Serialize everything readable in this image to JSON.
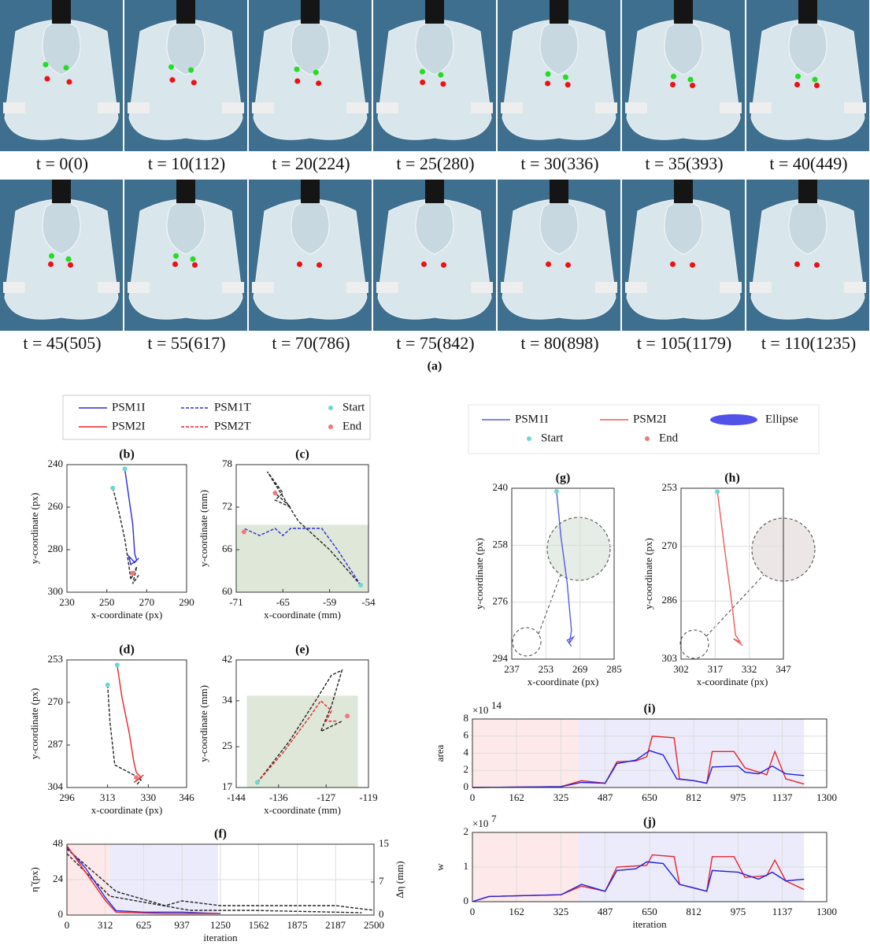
{
  "figure_a": {
    "labels": [
      "t = 0(0)",
      "t = 10(112)",
      "t = 20(224)",
      "t = 25(280)",
      "t = 30(336)",
      "t = 35(393)",
      "t = 40(449)",
      "t = 45(505)",
      "t = 55(617)",
      "t = 70(786)",
      "t = 75(842)",
      "t = 80(898)",
      "t = 105(1179)",
      "t = 110(1235)"
    ],
    "caption": "(a)"
  },
  "legends": [
    {
      "entries": [
        {
          "name": "PSM1I",
          "color": "#2b2bdc",
          "style": "solid"
        },
        {
          "name": "PSM1T",
          "color": "#2b2bdc",
          "style": "dashed"
        },
        {
          "name": "Start",
          "color": "#6fd6d6",
          "style": "point"
        },
        {
          "name": "PSM2I",
          "color": "#e8242a",
          "style": "solid"
        },
        {
          "name": "PSM2T",
          "color": "#e8242a",
          "style": "dashed"
        },
        {
          "name": "End",
          "color": "#f07a7a",
          "style": "point"
        }
      ]
    },
    {
      "entries": [
        {
          "name": "PSM1I",
          "color": "#5a5ae6",
          "style": "solid"
        },
        {
          "name": "PSM2I",
          "color": "#ee5a5a",
          "style": "solid"
        },
        {
          "name": "Ellipse",
          "color": "#5252e8",
          "style": "ellipse"
        },
        {
          "name": "Start",
          "color": "#6fd6d6",
          "style": "point"
        },
        {
          "name": "End",
          "color": "#f07a7a",
          "style": "point"
        }
      ]
    }
  ],
  "chart_data": [
    {
      "type": "line",
      "title": "(b)",
      "xlabel": "x-coordinate (px)",
      "ylabel": "y-coordinate (px)",
      "xlim": [
        230,
        290
      ],
      "xticks": [
        230,
        250,
        270,
        290
      ],
      "ylim": [
        300,
        240
      ],
      "yticks": [
        240,
        260,
        280,
        300
      ],
      "grid": false,
      "series": [
        {
          "color": "#222",
          "style": "dashed",
          "x": [
            253,
            256,
            259,
            261,
            262,
            264,
            265,
            263,
            266
          ],
          "y": [
            251,
            262,
            275,
            287,
            294,
            290,
            288,
            296,
            292
          ]
        },
        {
          "color": "#2b2bdc",
          "style": "solid",
          "x": [
            259,
            261,
            263,
            264,
            265,
            262,
            261,
            264,
            266
          ],
          "y": [
            242,
            255,
            268,
            282,
            285,
            287,
            283,
            286,
            284
          ]
        },
        {
          "color": "#6fd6d6",
          "style": "point",
          "x": [
            259,
            253
          ],
          "y": [
            242,
            251
          ]
        },
        {
          "color": "#f07a7a",
          "style": "point",
          "x": [
            263
          ],
          "y": [
            291
          ]
        }
      ]
    },
    {
      "type": "line",
      "title": "(c)",
      "xlabel": "x-coordinate (mm)",
      "ylabel": "y-coordinate (mm)",
      "xlim": [
        -71,
        -54
      ],
      "xticks": [
        -71,
        -65,
        -59,
        -54
      ],
      "ylim": [
        60,
        78
      ],
      "yticks": [
        60,
        66,
        72,
        78
      ],
      "grid": false,
      "regions": [
        {
          "x": [
            -71,
            -54
          ],
          "y": [
            60,
            69.5
          ],
          "color": "#dfe8d8"
        }
      ],
      "series": [
        {
          "color": "#222",
          "style": "dashed",
          "x": [
            -55,
            -59,
            -63,
            -67,
            -65,
            -66,
            -64,
            -66
          ],
          "y": [
            61,
            66,
            70,
            77,
            74,
            73,
            72,
            74
          ]
        },
        {
          "color": "#2b2bdc",
          "style": "dashed",
          "x": [
            -55,
            -58,
            -60,
            -62,
            -64,
            -65,
            -66,
            -68,
            -70
          ],
          "y": [
            61,
            66,
            69,
            69,
            69,
            68,
            69,
            68,
            69
          ]
        },
        {
          "color": "#6fd6d6",
          "style": "point",
          "x": [
            -55
          ],
          "y": [
            61
          ]
        },
        {
          "color": "#f07a7a",
          "style": "point",
          "x": [
            -66,
            -70
          ],
          "y": [
            74,
            68.5
          ]
        }
      ]
    },
    {
      "type": "line",
      "title": "(d)",
      "xlabel": "x-coordinate (px)",
      "ylabel": "y-coordinate (px)",
      "xlim": [
        296,
        346
      ],
      "xticks": [
        296,
        313,
        330,
        346
      ],
      "ylim": [
        304,
        253
      ],
      "yticks": [
        253,
        270,
        287,
        304
      ],
      "grid": false,
      "series": [
        {
          "color": "#222",
          "style": "dashed",
          "x": [
            313,
            314,
            316,
            320,
            324,
            327,
            325
          ],
          "y": [
            263,
            278,
            295,
            297,
            299,
            301,
            303
          ]
        },
        {
          "color": "#e8242a",
          "style": "solid",
          "x": [
            317,
            319,
            322,
            324,
            325,
            327,
            324,
            328
          ],
          "y": [
            255,
            268,
            282,
            294,
            298,
            300,
            302,
            299
          ]
        },
        {
          "color": "#6fd6d6",
          "style": "point",
          "x": [
            317,
            313
          ],
          "y": [
            255,
            263
          ]
        },
        {
          "color": "#f07a7a",
          "style": "point",
          "x": [
            325
          ],
          "y": [
            300
          ]
        }
      ]
    },
    {
      "type": "line",
      "title": "(e)",
      "xlabel": "x-coordinate (mm)",
      "ylabel": "y-coordinate (mm)",
      "xlim": [
        -144,
        -119
      ],
      "xticks": [
        -144,
        -136,
        -127,
        -119
      ],
      "ylim": [
        17,
        42
      ],
      "yticks": [
        17,
        25,
        34,
        42
      ],
      "grid": false,
      "regions": [
        {
          "x": [
            -142,
            -121
          ],
          "y": [
            17,
            35
          ],
          "color": "#dfe8d8"
        }
      ],
      "series": [
        {
          "color": "#222",
          "style": "dashed",
          "x": [
            -140,
            -134,
            -129,
            -126,
            -124,
            -126,
            -128,
            -124
          ],
          "y": [
            18,
            26,
            34,
            39,
            40,
            33,
            28,
            30
          ]
        },
        {
          "color": "#e8242a",
          "style": "dashed",
          "x": [
            -140,
            -135,
            -130,
            -128,
            -126,
            -127,
            -125
          ],
          "y": [
            18,
            24,
            31,
            34,
            32,
            30,
            30
          ]
        },
        {
          "color": "#6fd6d6",
          "style": "point",
          "x": [
            -140
          ],
          "y": [
            18
          ]
        },
        {
          "color": "#f07a7a",
          "style": "point",
          "x": [
            -123
          ],
          "y": [
            31
          ]
        }
      ]
    },
    {
      "type": "line",
      "title": "(f)",
      "xlabel": "iteration",
      "ylabel": "η̃ (px)",
      "y2label": "Δη (mm)",
      "xlim": [
        0,
        2500
      ],
      "xticks": [
        0,
        312,
        625,
        937,
        1250,
        1562,
        1875,
        2187,
        2500
      ],
      "ylim": [
        0,
        48
      ],
      "yticks": [
        0,
        24,
        48
      ],
      "y2lim": [
        0,
        15
      ],
      "y2ticks": [
        0,
        7,
        15
      ],
      "grid": true,
      "regions": [
        {
          "x": [
            0,
            350
          ],
          "y": [
            0,
            48
          ],
          "color": "#fde9e9"
        },
        {
          "x": [
            350,
            1230
          ],
          "y": [
            0,
            48
          ],
          "color": "#ebebfb"
        }
      ],
      "series": [
        {
          "color": "#222",
          "style": "dashed",
          "axis": "y2",
          "x": [
            0,
            400,
            800,
            937,
            1250,
            1562,
            1875,
            2187,
            2500
          ],
          "y": [
            14,
            5,
            2,
            3,
            2,
            2,
            2,
            2,
            1
          ]
        },
        {
          "color": "#222",
          "style": "dashed",
          "axis": "y2",
          "x": [
            0,
            350,
            1000,
            1500,
            2400
          ],
          "y": [
            13,
            4,
            1,
            1,
            0.5
          ]
        },
        {
          "color": "#2b2bdc",
          "style": "solid",
          "x": [
            0,
            150,
            312,
            400,
            625,
            937,
            1250
          ],
          "y": [
            46,
            32,
            12,
            3,
            2,
            2,
            1
          ]
        },
        {
          "color": "#e8242a",
          "style": "solid",
          "x": [
            0,
            312,
            400,
            800,
            1230
          ],
          "y": [
            47,
            10,
            2,
            1,
            1
          ]
        }
      ]
    },
    {
      "type": "line",
      "title": "(g)",
      "xlabel": "x-coordinate (px)",
      "ylabel": "y-coordinate (px)",
      "xlim": [
        237,
        285
      ],
      "xticks": [
        237,
        253,
        269,
        285
      ],
      "ylim": [
        294,
        240
      ],
      "yticks": [
        240,
        258,
        276,
        294
      ],
      "grid": true,
      "series": [
        {
          "color": "#5a5ae6",
          "style": "solid",
          "x": [
            258,
            260,
            263,
            265,
            264,
            266,
            263,
            265
          ],
          "y": [
            241,
            255,
            270,
            285,
            289,
            287,
            288,
            290
          ]
        },
        {
          "color": "#6fd6d6",
          "style": "point",
          "x": [
            258
          ],
          "y": [
            241
          ]
        }
      ]
    },
    {
      "type": "line",
      "title": "(h)",
      "xlabel": "x-coordinate (px)",
      "ylabel": "y-coordinate (px)",
      "xlim": [
        302,
        347
      ],
      "xticks": [
        302,
        317,
        332,
        347
      ],
      "ylim": [
        303,
        253
      ],
      "yticks": [
        253,
        270,
        286,
        303
      ],
      "grid": true,
      "series": [
        {
          "color": "#ee5a5a",
          "style": "solid",
          "x": [
            318,
            321,
            324,
            326,
            328,
            325,
            329
          ],
          "y": [
            254,
            270,
            285,
            296,
            298,
            297,
            299
          ]
        },
        {
          "color": "#6fd6d6",
          "style": "point",
          "x": [
            318
          ],
          "y": [
            254
          ]
        }
      ]
    },
    {
      "type": "line",
      "title": "(i)",
      "ylabel": "area",
      "multiplier": "×10",
      "multiplier_exponent": "14",
      "xlim": [
        0,
        1300
      ],
      "xticks": [
        0,
        162,
        325,
        487,
        650,
        812,
        975,
        1137,
        1300
      ],
      "ylim": [
        0,
        8
      ],
      "yticks": [
        0,
        2,
        4,
        6,
        8
      ],
      "grid": true,
      "regions": [
        {
          "x": [
            0,
            390
          ],
          "y": [
            0,
            8
          ],
          "color": "#fde9e9"
        },
        {
          "x": [
            390,
            1217
          ],
          "y": [
            0,
            8
          ],
          "color": "#ebebfb"
        }
      ],
      "series": [
        {
          "color": "#e8242a",
          "style": "solid",
          "x": [
            0,
            325,
            400,
            487,
            530,
            600,
            640,
            660,
            740,
            760,
            812,
            860,
            880,
            960,
            1000,
            1080,
            1110,
            1150,
            1217
          ],
          "y": [
            0,
            0.1,
            0.8,
            0.5,
            3,
            3.1,
            3.6,
            6,
            5.8,
            1,
            0.8,
            0.5,
            4.2,
            4.2,
            2.3,
            1.5,
            4.2,
            1,
            0.4
          ]
        },
        {
          "color": "#2020e0",
          "style": "solid",
          "x": [
            0,
            325,
            400,
            487,
            530,
            600,
            650,
            700,
            750,
            812,
            860,
            880,
            975,
            1000,
            1050,
            1100,
            1150,
            1217
          ],
          "y": [
            0,
            0.1,
            0.6,
            0.5,
            2.8,
            3.2,
            4.3,
            3.8,
            1,
            0.8,
            0.5,
            2.4,
            2.5,
            1.8,
            1.6,
            2.5,
            1.6,
            1.4
          ]
        }
      ]
    },
    {
      "type": "line",
      "title": "(j)",
      "xlabel": "iteration",
      "ylabel": "w",
      "multiplier": "×10",
      "multiplier_exponent": "7",
      "xlim": [
        0,
        1300
      ],
      "xticks": [
        0,
        162,
        325,
        487,
        650,
        812,
        975,
        1137,
        1300
      ],
      "ylim": [
        0,
        2
      ],
      "yticks": [
        0,
        1,
        2
      ],
      "grid": true,
      "regions": [
        {
          "x": [
            0,
            390
          ],
          "y": [
            0,
            2
          ],
          "color": "#fde9e9"
        },
        {
          "x": [
            390,
            1217
          ],
          "y": [
            0,
            2
          ],
          "color": "#ebebfb"
        }
      ],
      "series": [
        {
          "color": "#e8242a",
          "style": "solid",
          "x": [
            0,
            60,
            325,
            400,
            487,
            530,
            640,
            660,
            740,
            760,
            860,
            880,
            960,
            1000,
            1080,
            1110,
            1150,
            1217
          ],
          "y": [
            0,
            0.15,
            0.2,
            0.45,
            0.3,
            1,
            1.05,
            1.35,
            1.3,
            0.5,
            0.3,
            1.3,
            1.3,
            0.7,
            0.75,
            1.2,
            0.6,
            0.35
          ]
        },
        {
          "color": "#2020e0",
          "style": "solid",
          "x": [
            0,
            60,
            325,
            400,
            487,
            530,
            600,
            640,
            700,
            760,
            812,
            860,
            880,
            975,
            1050,
            1100,
            1150,
            1217
          ],
          "y": [
            0,
            0.15,
            0.2,
            0.5,
            0.3,
            0.9,
            0.95,
            1.15,
            1.1,
            0.5,
            0.4,
            0.3,
            0.9,
            0.85,
            0.65,
            0.85,
            0.6,
            0.65
          ]
        }
      ]
    }
  ]
}
